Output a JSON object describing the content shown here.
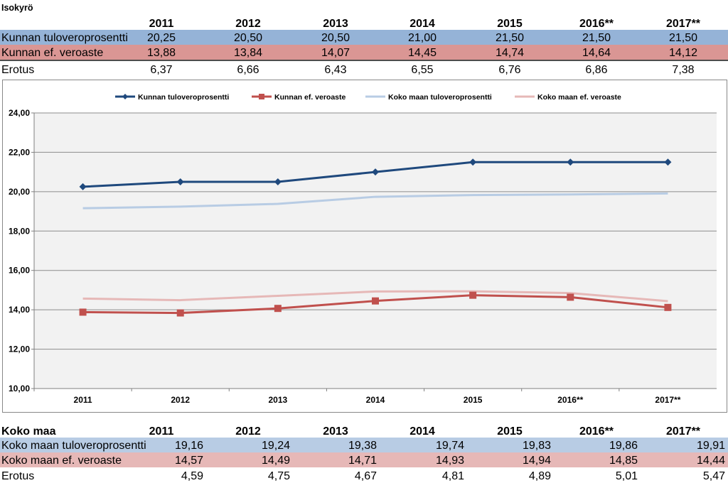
{
  "top_table": {
    "title": "Isokyrö",
    "years": [
      "2011",
      "2012",
      "2013",
      "2014",
      "2015",
      "2016**",
      "2017**"
    ],
    "rows": [
      {
        "label": "Kunnan tuloveroprosentti",
        "values": [
          "20,25",
          "20,50",
          "20,50",
          "21,00",
          "21,50",
          "21,50",
          "21,50"
        ]
      },
      {
        "label": "Kunnan ef. veroaste",
        "values": [
          "13,88",
          "13,84",
          "14,07",
          "14,45",
          "14,74",
          "14,64",
          "14,12"
        ]
      },
      {
        "label": "Erotus",
        "values": [
          "6,37",
          "6,66",
          "6,43",
          "6,55",
          "6,76",
          "6,86",
          "7,38"
        ]
      }
    ]
  },
  "bottom_table": {
    "title": "Koko maa",
    "years": [
      "2011",
      "2012",
      "2013",
      "2014",
      "2015",
      "2016**",
      "2017**"
    ],
    "rows": [
      {
        "label": "Koko maan tuloveroprosentti",
        "values": [
          "19,16",
          "19,24",
          "19,38",
          "19,74",
          "19,83",
          "19,86",
          "19,91"
        ]
      },
      {
        "label": "Koko maan ef. veroaste",
        "values": [
          "14,57",
          "14,49",
          "14,71",
          "14,93",
          "14,94",
          "14,85",
          "14,44"
        ]
      },
      {
        "label": "Erotus",
        "values": [
          "4,59",
          "4,75",
          "4,67",
          "4,81",
          "4,89",
          "5,01",
          "5,47"
        ]
      }
    ]
  },
  "chart_data": {
    "type": "line",
    "categories": [
      "2011",
      "2012",
      "2013",
      "2014",
      "2015",
      "2016**",
      "2017**"
    ],
    "ylim": [
      10,
      24
    ],
    "yticks": [
      "10,00",
      "12,00",
      "14,00",
      "16,00",
      "18,00",
      "20,00",
      "22,00",
      "24,00"
    ],
    "grid": true,
    "legend_position": "top",
    "series": [
      {
        "name": "Kunnan tuloveroprosentti",
        "values": [
          20.25,
          20.5,
          20.5,
          21.0,
          21.5,
          21.5,
          21.5
        ],
        "color": "#1f497d",
        "marker": "diamond"
      },
      {
        "name": "Kunnan ef. veroaste",
        "values": [
          13.88,
          13.84,
          14.07,
          14.45,
          14.74,
          14.64,
          14.12
        ],
        "color": "#c0504d",
        "marker": "square"
      },
      {
        "name": "Koko maan tuloveroprosentti",
        "values": [
          19.16,
          19.24,
          19.38,
          19.74,
          19.83,
          19.86,
          19.91
        ],
        "color": "#b8cce4",
        "marker": "none"
      },
      {
        "name": "Koko maan ef. veroaste",
        "values": [
          14.57,
          14.49,
          14.71,
          14.93,
          14.94,
          14.85,
          14.44
        ],
        "color": "#e6b8b7",
        "marker": "none"
      }
    ]
  }
}
